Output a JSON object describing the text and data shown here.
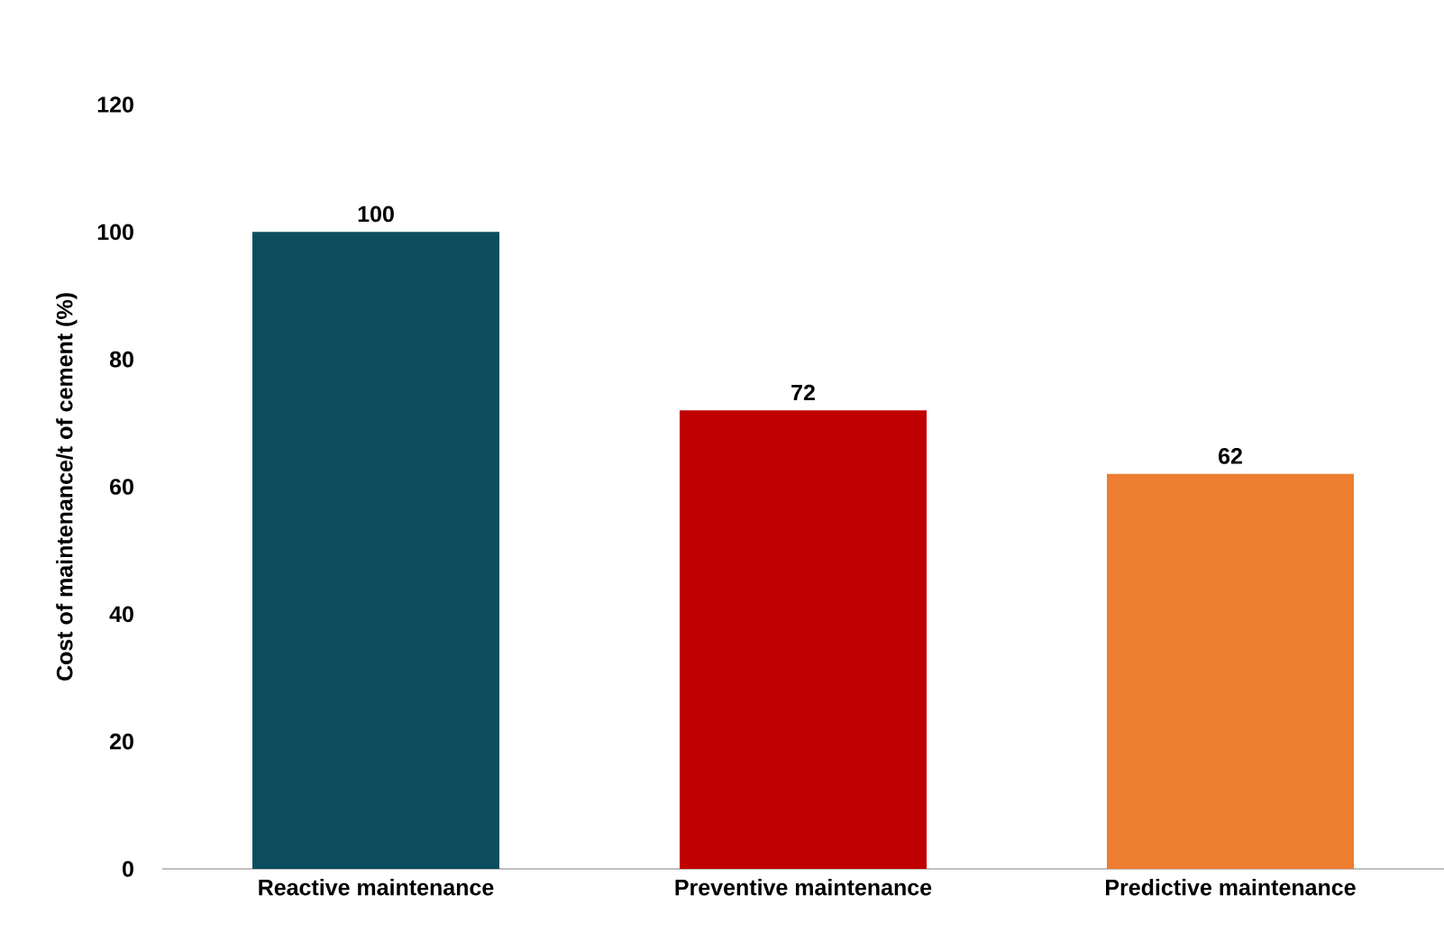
{
  "chart_data": {
    "type": "bar",
    "ylabel": "Cost of maintenance/t of cement (%)",
    "categories": [
      "Reactive maintenance",
      "Preventive maintenance",
      "Predictive maintenance"
    ],
    "values": [
      100,
      72,
      62
    ],
    "colors": [
      "#0b4d5e",
      "#c00000",
      "#ed7d31"
    ],
    "ylim": [
      0,
      120
    ],
    "yticks": [
      0,
      20,
      40,
      60,
      80,
      100,
      120
    ],
    "data_labels": true
  }
}
